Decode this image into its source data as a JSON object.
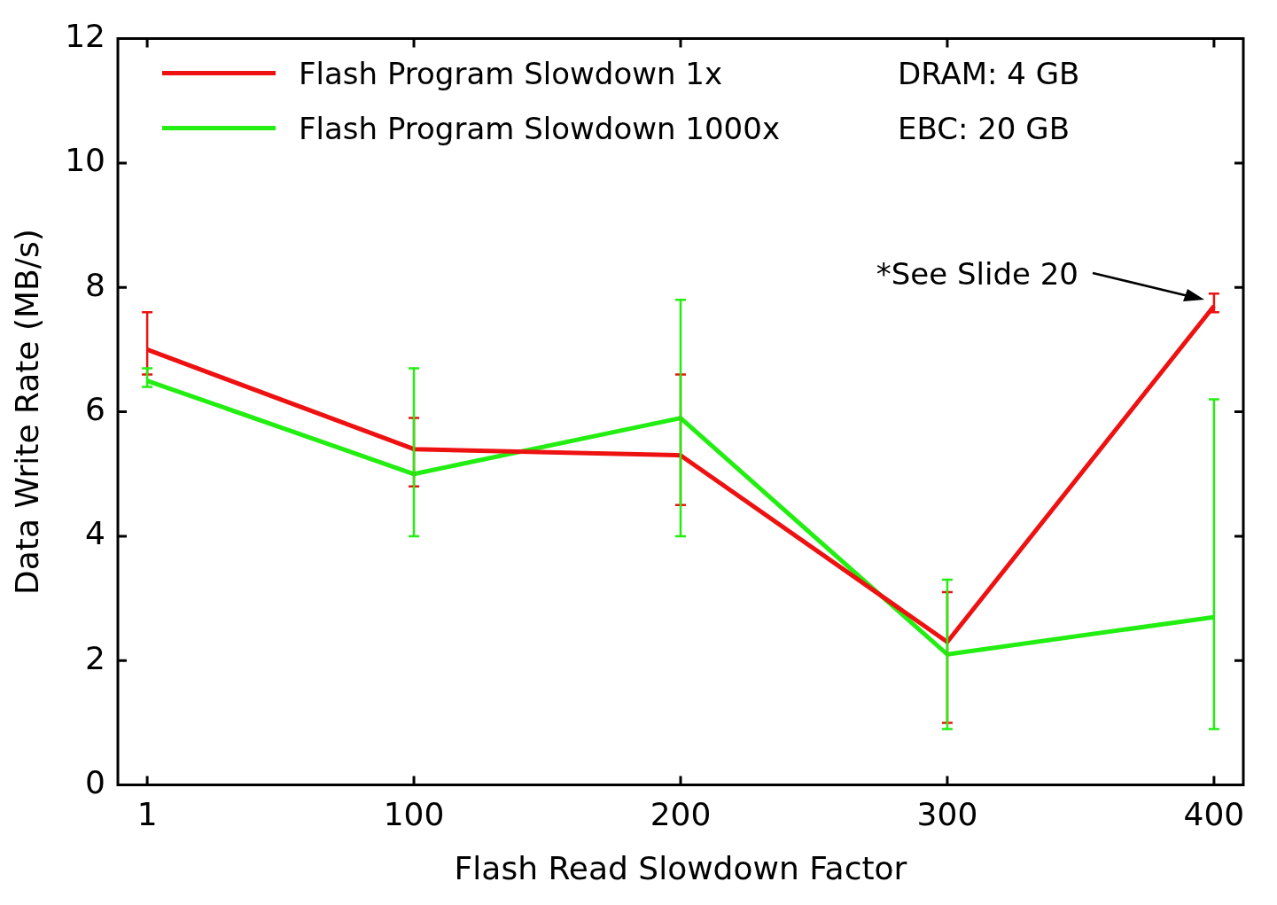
{
  "chart_data": {
    "type": "line",
    "xlabel": "Flash Read Slowdown Factor",
    "ylabel": "Data Write Rate (MB/s)",
    "categories": [
      "1",
      "100",
      "200",
      "300",
      "400"
    ],
    "series": [
      {
        "name": "Flash Program Slowdown 1x",
        "color": "#ee1111",
        "values": [
          7.0,
          5.4,
          5.3,
          2.3,
          7.7
        ],
        "errors": [
          [
            6.6,
            7.6
          ],
          [
            4.8,
            5.9
          ],
          [
            4.5,
            6.6
          ],
          [
            1.0,
            3.1
          ],
          [
            7.6,
            7.9
          ]
        ]
      },
      {
        "name": "Flash Program Slowdown 1000x",
        "color": "#22ee11",
        "values": [
          6.5,
          5.0,
          5.9,
          2.1,
          2.7
        ],
        "errors": [
          [
            6.4,
            6.7
          ],
          [
            4.0,
            6.7
          ],
          [
            4.0,
            7.8
          ],
          [
            0.9,
            3.3
          ],
          [
            0.9,
            6.2
          ]
        ]
      }
    ],
    "ylim": [
      0,
      12
    ],
    "yticks": [
      0,
      2,
      4,
      6,
      8,
      10,
      12
    ],
    "grid": false,
    "legend": "top left",
    "marker": "none",
    "line_style": "solid",
    "annotations": [
      "DRAM: 4 GB",
      "EBC: 20 GB",
      "*See Slide 20"
    ]
  }
}
